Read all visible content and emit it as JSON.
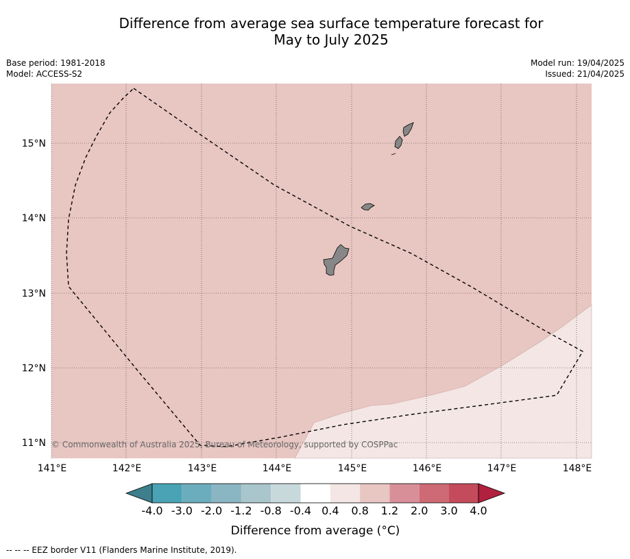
{
  "title": {
    "line1": "Difference from average sea surface temperature forecast for",
    "line2": "May to July 2025"
  },
  "meta_left": {
    "base_period": "Base period: 1981-2018",
    "model": "Model: ACCESS-S2"
  },
  "meta_right": {
    "model_run": "Model run: 19/04/2025",
    "issued": "Issued: 21/04/2025"
  },
  "map": {
    "lon_ticks": [
      "141°E",
      "142°E",
      "143°E",
      "144°E",
      "145°E",
      "146°E",
      "147°E",
      "148°E"
    ],
    "lat_ticks": [
      "15°N",
      "14°N",
      "13°N",
      "12°N",
      "11°N"
    ],
    "copyright": "© Commonwealth of Australia 2025, Bureau of Meteorology, supported by COSPPac",
    "colors": {
      "anomaly_0.8_1.2": "#e8c6c2",
      "anomaly_0.4_0.8": "#f3e6e4",
      "land": "#878787"
    }
  },
  "colorbar": {
    "labels": [
      "-4.0",
      "-3.0",
      "-2.0",
      "-1.2",
      "-0.8",
      "-0.4",
      "0.4",
      "0.8",
      "1.2",
      "2.0",
      "3.0",
      "4.0"
    ],
    "colors": [
      "#3d7f8c",
      "#4aa3b4",
      "#6cadbd",
      "#8ab5c2",
      "#a9c6cc",
      "#c8d9dc",
      "#ffffff",
      "#f3e6e4",
      "#e8c6c2",
      "#d88f98",
      "#cd6a75",
      "#c44b5b",
      "#b22040"
    ],
    "title": "Difference from average (",
    "title_unit": "°C)"
  },
  "footer": "--  --  -- EEZ border V11 (Flanders Marine Institute, 2019)."
}
